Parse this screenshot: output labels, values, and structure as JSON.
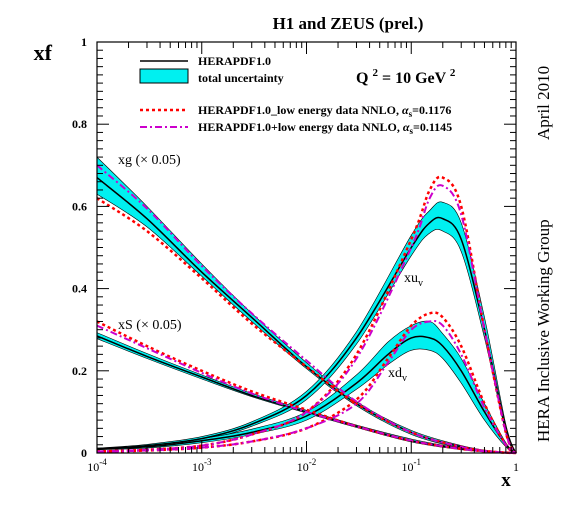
{
  "chart_data": {
    "type": "line",
    "title": "H1 and ZEUS (prel.)",
    "ylabel": "xf",
    "xlabel": "x",
    "xscale": "log",
    "xlim": [
      0.0001,
      1
    ],
    "ylim": [
      0,
      1
    ],
    "x_ticks": [
      {
        "value": 0.0001,
        "base": "10",
        "exp": "-4"
      },
      {
        "value": 0.001,
        "base": "10",
        "exp": "-3"
      },
      {
        "value": 0.01,
        "base": "10",
        "exp": "-2"
      },
      {
        "value": 0.1,
        "base": "10",
        "exp": "-1"
      },
      {
        "value": 1,
        "base": "1",
        "exp": ""
      }
    ],
    "y_ticks": [
      {
        "value": 0,
        "label": "0"
      },
      {
        "value": 0.2,
        "label": "0.2"
      },
      {
        "value": 0.4,
        "label": "0.4"
      },
      {
        "value": 0.6,
        "label": "0.6"
      },
      {
        "value": 0.8,
        "label": "0.8"
      },
      {
        "value": 1,
        "label": "1"
      }
    ],
    "q2_label": {
      "prefix": "Q",
      "sup": "2",
      "mid": " = 10 GeV",
      "sup2": "2"
    },
    "side_label_right": "HERA Inclusive Working Group",
    "side_label_top": "April 2010",
    "legend": [
      {
        "label": "HERAPDF1.0",
        "style": "solid",
        "color": "#000000"
      },
      {
        "label": "total uncertainty",
        "style": "band",
        "color": "#00f0f0"
      },
      {
        "label": "HERAPDF1.0_low energy data NNLO, ",
        "alpha": "α",
        "sub": "s",
        "value": "=0.1176",
        "style": "dotted",
        "color": "#ff0000"
      },
      {
        "label": "HERAPDF1.0+low energy data NNLO, ",
        "alpha": "α",
        "sub": "s",
        "value": "=0.1145",
        "style": "dashdot",
        "color": "#cc00cc"
      }
    ],
    "curve_labels": [
      {
        "id": "xg",
        "text": "xg (× 0.05)",
        "sub": ""
      },
      {
        "id": "xS",
        "text": "xS (× 0.05)",
        "sub": ""
      },
      {
        "id": "xuv",
        "text": "xu",
        "sub": "v"
      },
      {
        "id": "xdv",
        "text": "xd",
        "sub": "v"
      }
    ],
    "series": [
      {
        "name": "xg (× 0.05)",
        "x": [
          0.0001,
          0.0003,
          0.001,
          0.003,
          0.01,
          0.03,
          0.1,
          0.3,
          0.6,
          1
        ],
        "central": [
          0.67,
          0.57,
          0.44,
          0.33,
          0.21,
          0.12,
          0.05,
          0.015,
          0.003,
          0
        ],
        "band_lo": [
          0.63,
          0.55,
          0.43,
          0.32,
          0.205,
          0.115,
          0.045,
          0.012,
          0.002,
          0
        ],
        "band_hi": [
          0.72,
          0.6,
          0.46,
          0.34,
          0.22,
          0.125,
          0.055,
          0.018,
          0.004,
          0
        ],
        "nnlo_low": [
          0.62,
          0.54,
          0.425,
          0.315,
          0.21,
          0.12,
          0.05,
          0.015,
          0.003,
          0
        ],
        "nnlo_plus": [
          0.7,
          0.595,
          0.455,
          0.34,
          0.225,
          0.125,
          0.05,
          0.015,
          0.003,
          0
        ]
      },
      {
        "name": "xS (× 0.05)",
        "x": [
          0.0001,
          0.0003,
          0.001,
          0.003,
          0.01,
          0.03,
          0.1,
          0.3,
          0.6,
          1
        ],
        "central": [
          0.285,
          0.235,
          0.185,
          0.14,
          0.1,
          0.065,
          0.03,
          0.01,
          0.003,
          0
        ],
        "band_lo": [
          0.278,
          0.23,
          0.18,
          0.137,
          0.097,
          0.062,
          0.027,
          0.008,
          0.002,
          0
        ],
        "band_hi": [
          0.293,
          0.242,
          0.19,
          0.145,
          0.104,
          0.068,
          0.034,
          0.012,
          0.004,
          0
        ],
        "nnlo_low": [
          0.32,
          0.26,
          0.2,
          0.15,
          0.105,
          0.065,
          0.03,
          0.01,
          0.003,
          0
        ],
        "nnlo_plus": [
          0.31,
          0.255,
          0.195,
          0.145,
          0.1,
          0.065,
          0.03,
          0.01,
          0.003,
          0
        ]
      },
      {
        "name": "xu_v",
        "x": [
          0.0001,
          0.0003,
          0.001,
          0.003,
          0.01,
          0.03,
          0.1,
          0.15,
          0.2,
          0.3,
          0.5,
          0.8,
          1
        ],
        "central": [
          0.01,
          0.018,
          0.035,
          0.07,
          0.14,
          0.28,
          0.5,
          0.56,
          0.57,
          0.52,
          0.3,
          0.06,
          0
        ],
        "band_lo": [
          0.008,
          0.015,
          0.03,
          0.065,
          0.13,
          0.265,
          0.48,
          0.535,
          0.54,
          0.49,
          0.28,
          0.05,
          0
        ],
        "band_hi": [
          0.012,
          0.021,
          0.04,
          0.076,
          0.15,
          0.295,
          0.53,
          0.59,
          0.61,
          0.56,
          0.33,
          0.07,
          0
        ],
        "nnlo_low": [
          0.004,
          0.008,
          0.018,
          0.045,
          0.1,
          0.24,
          0.52,
          0.64,
          0.67,
          0.6,
          0.3,
          0.05,
          0
        ],
        "nnlo_plus": [
          0.004,
          0.008,
          0.018,
          0.045,
          0.1,
          0.23,
          0.5,
          0.62,
          0.65,
          0.58,
          0.3,
          0.05,
          0
        ]
      },
      {
        "name": "xd_v",
        "x": [
          0.0001,
          0.0003,
          0.001,
          0.003,
          0.01,
          0.03,
          0.06,
          0.1,
          0.15,
          0.2,
          0.3,
          0.5,
          0.8,
          1
        ],
        "central": [
          0.01,
          0.015,
          0.03,
          0.05,
          0.09,
          0.17,
          0.24,
          0.28,
          0.28,
          0.26,
          0.2,
          0.1,
          0.02,
          0
        ],
        "band_lo": [
          0.008,
          0.012,
          0.025,
          0.045,
          0.08,
          0.155,
          0.215,
          0.25,
          0.25,
          0.23,
          0.17,
          0.08,
          0.015,
          0
        ],
        "band_hi": [
          0.012,
          0.018,
          0.035,
          0.058,
          0.1,
          0.19,
          0.27,
          0.31,
          0.32,
          0.29,
          0.23,
          0.12,
          0.025,
          0
        ],
        "nnlo_low": [
          0.003,
          0.006,
          0.013,
          0.028,
          0.06,
          0.13,
          0.23,
          0.31,
          0.34,
          0.33,
          0.26,
          0.12,
          0.02,
          0
        ],
        "nnlo_plus": [
          0.003,
          0.006,
          0.013,
          0.028,
          0.06,
          0.12,
          0.22,
          0.3,
          0.32,
          0.31,
          0.24,
          0.11,
          0.02,
          0
        ]
      }
    ]
  }
}
